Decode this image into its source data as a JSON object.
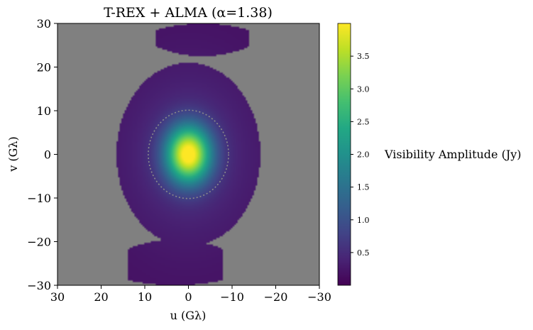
{
  "chart_data": {
    "type": "heatmap",
    "title": "T-REX + ALMA (α=1.38)",
    "xlabel": "u (Gλ)",
    "ylabel": "v (Gλ)",
    "xlim": [
      30,
      -30
    ],
    "ylim": [
      -30,
      30
    ],
    "x_ticks": [
      30,
      20,
      10,
      0,
      -10,
      -20,
      -30
    ],
    "x_tick_labels": [
      "30",
      "20",
      "10",
      "0",
      "−10",
      "−20",
      "−30"
    ],
    "y_ticks": [
      30,
      20,
      10,
      0,
      -10,
      -20,
      -30
    ],
    "y_tick_labels": [
      "30",
      "20",
      "10",
      "0",
      "−10",
      "−20",
      "−30"
    ],
    "colormap": "viridis",
    "background_color": "#808080",
    "colorbar": {
      "label": "Visibility Amplitude (Jy)",
      "range": [
        0.0,
        4.0
      ],
      "ticks": [
        0.5,
        1.0,
        1.5,
        2.0,
        2.5,
        3.0,
        3.5
      ],
      "tick_labels": [
        "0.5",
        "1.0",
        "1.5",
        "2.0",
        "2.5",
        "3.0",
        "3.5"
      ]
    },
    "coverage_regions": [
      {
        "name": "central ellipse",
        "u_half_width": 16.5,
        "v_half_height": 21
      },
      {
        "name": "upper arc",
        "u_range": [
          -14,
          7.5
        ],
        "v_range": [
          22.5,
          30
        ]
      },
      {
        "name": "lower arc",
        "u_range": [
          -8,
          14
        ],
        "v_range": [
          -30,
          -19.5
        ]
      }
    ],
    "peak": {
      "u": 0,
      "v": 0,
      "amplitude": 3.9
    },
    "gaussian_sigma": {
      "u": 3.6,
      "v": 4.6
    },
    "base_amplitude": 0.18,
    "dotted_ring_radius": 9.2
  }
}
